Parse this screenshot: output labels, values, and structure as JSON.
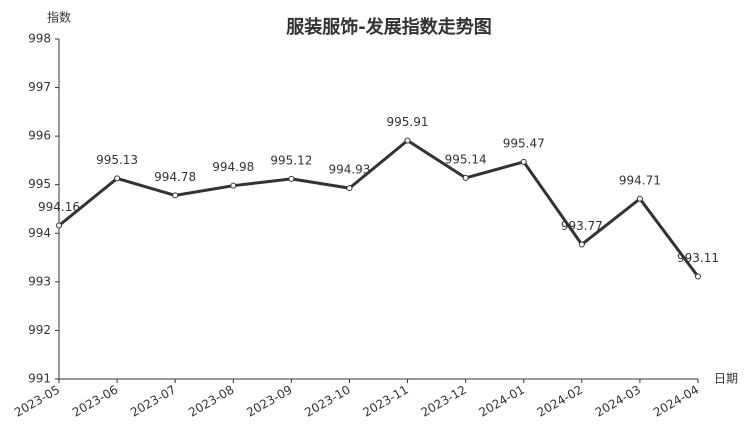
{
  "chart_data": {
    "type": "line",
    "title": "服装服饰-发展指数走势图",
    "y_label": "指数",
    "x_label": "日期",
    "categories": [
      "2023-05",
      "2023-06",
      "2023-07",
      "2023-08",
      "2023-09",
      "2023-10",
      "2023-11",
      "2023-12",
      "2024-01",
      "2024-02",
      "2024-03",
      "2024-04"
    ],
    "values": [
      994.16,
      995.13,
      994.78,
      994.98,
      995.12,
      994.93,
      995.91,
      995.14,
      995.47,
      993.77,
      994.71,
      993.11
    ],
    "color": "#333333",
    "ylim": [
      991,
      998
    ],
    "yticks": [
      991,
      992,
      993,
      994,
      995,
      996,
      997,
      998
    ],
    "grid": false
  }
}
